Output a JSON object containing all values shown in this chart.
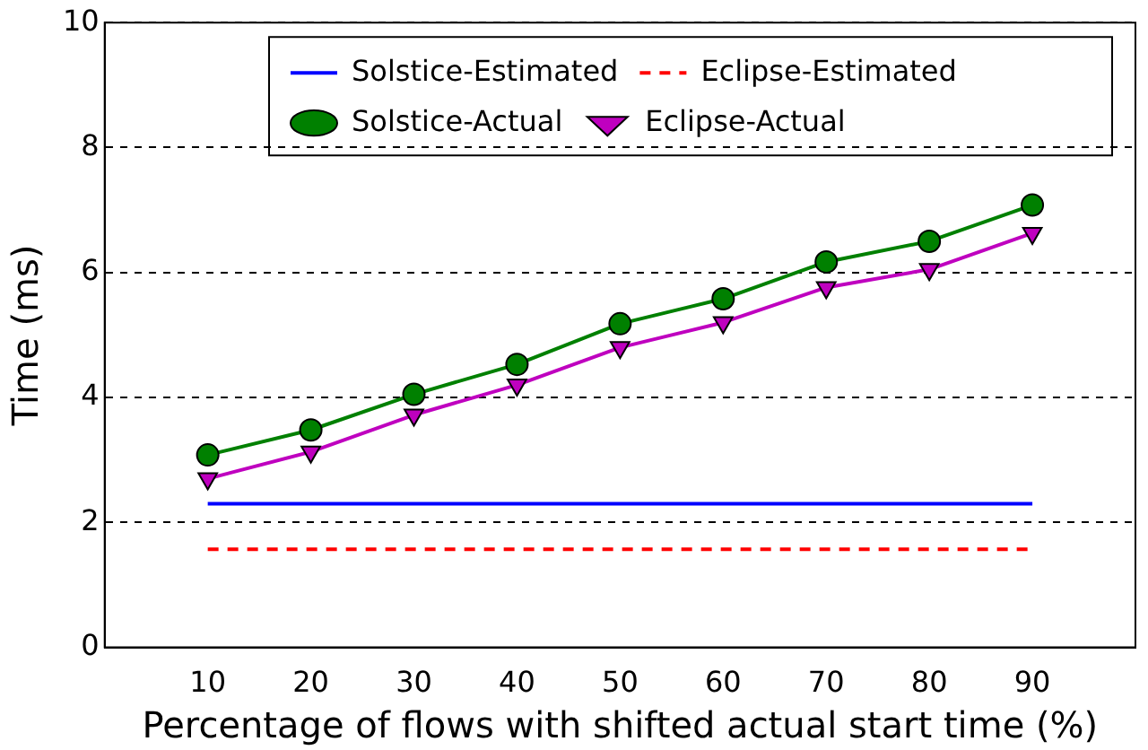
{
  "chart_data": {
    "type": "line",
    "xlabel": "Percentage of flows with shifted actual start time (%)",
    "ylabel": "Time (ms)",
    "x": [
      10,
      20,
      30,
      40,
      50,
      60,
      70,
      80,
      90
    ],
    "series": [
      {
        "name": "Solstice-Estimated",
        "color": "#0000ff",
        "values": [
          2.3,
          2.3,
          2.3,
          2.3,
          2.3,
          2.3,
          2.3,
          2.3,
          2.3
        ],
        "marker": "none",
        "line_style": "solid"
      },
      {
        "name": "Eclipse-Estimated",
        "color": "#ff0000",
        "values": [
          1.57,
          1.57,
          1.57,
          1.57,
          1.57,
          1.57,
          1.57,
          1.57,
          1.57
        ],
        "marker": "none",
        "line_style": "dashed"
      },
      {
        "name": "Solstice-Actual",
        "color": "#008000",
        "values": [
          3.08,
          3.48,
          4.05,
          4.53,
          5.18,
          5.58,
          6.17,
          6.5,
          7.08
        ],
        "marker": "circle",
        "line_style": "solid"
      },
      {
        "name": "Eclipse-Actual",
        "color": "#bf00bf",
        "values": [
          2.7,
          3.13,
          3.72,
          4.2,
          4.8,
          5.2,
          5.76,
          6.05,
          6.63
        ],
        "marker": "triangle",
        "line_style": "solid"
      }
    ],
    "xlim": [
      0,
      100
    ],
    "xticks": [
      10,
      20,
      30,
      40,
      50,
      60,
      70,
      80,
      90
    ],
    "ylim": [
      0,
      10
    ],
    "yticks": [
      0,
      2,
      4,
      6,
      8,
      10
    ],
    "grid": "y",
    "legend": "top right"
  }
}
